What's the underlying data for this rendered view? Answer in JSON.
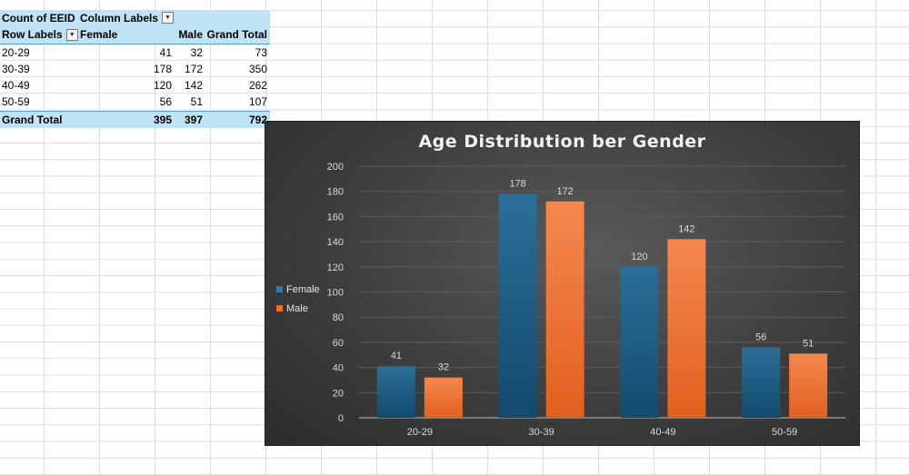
{
  "pivot": {
    "header1": {
      "label": "Count of EEID",
      "column_labels": "Column Labels"
    },
    "header2": {
      "row_labels": "Row Labels",
      "female": "Female",
      "male": "Male",
      "grand_total": "Grand Total"
    },
    "rows": [
      {
        "label": "20-29",
        "female": "41",
        "male": "32",
        "total": "73"
      },
      {
        "label": "30-39",
        "female": "178",
        "male": "172",
        "total": "350"
      },
      {
        "label": "40-49",
        "female": "120",
        "male": "142",
        "total": "262"
      },
      {
        "label": "50-59",
        "female": "56",
        "male": "51",
        "total": "107"
      }
    ],
    "grand_total": {
      "label": "Grand Total",
      "female": "395",
      "male": "397",
      "total": "792"
    }
  },
  "chart_data": {
    "type": "bar",
    "title": "Age Distribution ber Gender",
    "categories": [
      "20-29",
      "30-39",
      "40-49",
      "50-59"
    ],
    "series": [
      {
        "name": "Female",
        "values": [
          41,
          178,
          120,
          56
        ],
        "color": "#1f5f86"
      },
      {
        "name": "Male",
        "values": [
          32,
          172,
          142,
          51
        ],
        "color": "#ee6f2d"
      }
    ],
    "ylim": [
      0,
      200
    ],
    "yticks": [
      0,
      20,
      40,
      60,
      80,
      100,
      120,
      140,
      160,
      180,
      200
    ],
    "grid": true,
    "legend": "left",
    "data_labels": true,
    "background": "#3e3e3e"
  }
}
